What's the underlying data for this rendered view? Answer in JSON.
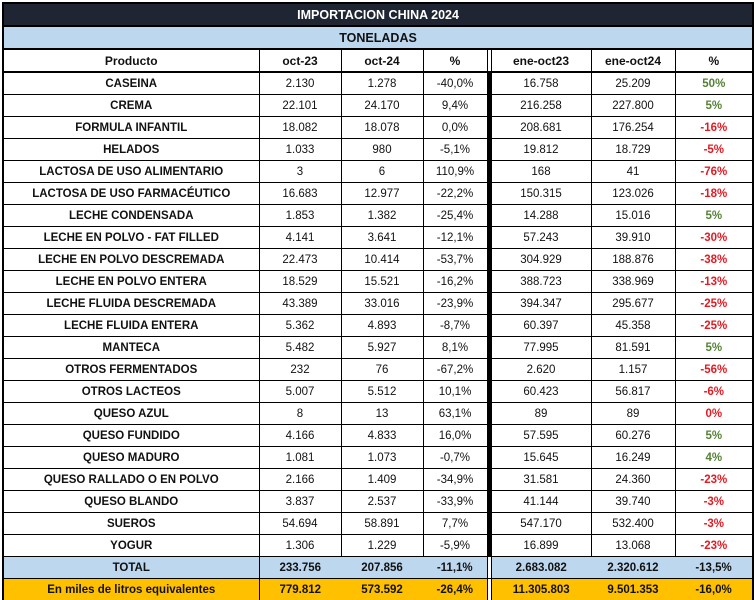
{
  "title": "IMPORTACION CHINA 2024",
  "subtitle": "TONELADAS",
  "columns": [
    "Producto",
    "oct-23",
    "oct-24",
    "%",
    "ene-oct23",
    "ene-oct24",
    "%"
  ],
  "colors": {
    "title_bg": "#1f2533",
    "band_blue": "#bdd7ee",
    "band_orange": "#ffc000",
    "pct_up": "#548235",
    "pct_down": "#e01b24",
    "grid": "#000000"
  },
  "chart_data": {
    "type": "table",
    "title": "IMPORTACION CHINA 2024",
    "unit": "TONELADAS",
    "columns": [
      "Producto",
      "oct-23",
      "oct-24",
      "%",
      "ene-oct23",
      "ene-oct24",
      "%"
    ],
    "rows": [
      {
        "cells": [
          "CASEINA",
          "2.130",
          "1.278",
          "-40,0%",
          "16.758",
          "25.209",
          "50%"
        ],
        "trend": "up"
      },
      {
        "cells": [
          "CREMA",
          "22.101",
          "24.170",
          "9,4%",
          "216.258",
          "227.800",
          "5%"
        ],
        "trend": "up"
      },
      {
        "cells": [
          "FORMULA INFANTIL",
          "18.082",
          "18.078",
          "0,0%",
          "208.681",
          "176.254",
          "-16%"
        ],
        "trend": "down"
      },
      {
        "cells": [
          "HELADOS",
          "1.033",
          "980",
          "-5,1%",
          "19.812",
          "18.729",
          "-5%"
        ],
        "trend": "down"
      },
      {
        "cells": [
          "LACTOSA DE USO ALIMENTARIO",
          "3",
          "6",
          "110,9%",
          "168",
          "41",
          "-76%"
        ],
        "trend": "down"
      },
      {
        "cells": [
          "LACTOSA DE USO FARMACÉUTICO",
          "16.683",
          "12.977",
          "-22,2%",
          "150.315",
          "123.026",
          "-18%"
        ],
        "trend": "down"
      },
      {
        "cells": [
          "LECHE CONDENSADA",
          "1.853",
          "1.382",
          "-25,4%",
          "14.288",
          "15.016",
          "5%"
        ],
        "trend": "up"
      },
      {
        "cells": [
          "LECHE EN POLVO - FAT FILLED",
          "4.141",
          "3.641",
          "-12,1%",
          "57.243",
          "39.910",
          "-30%"
        ],
        "trend": "down"
      },
      {
        "cells": [
          "LECHE EN POLVO DESCREMADA",
          "22.473",
          "10.414",
          "-53,7%",
          "304.929",
          "188.876",
          "-38%"
        ],
        "trend": "down"
      },
      {
        "cells": [
          "LECHE EN POLVO ENTERA",
          "18.529",
          "15.521",
          "-16,2%",
          "388.723",
          "338.969",
          "-13%"
        ],
        "trend": "down"
      },
      {
        "cells": [
          "LECHE FLUIDA DESCREMADA",
          "43.389",
          "33.016",
          "-23,9%",
          "394.347",
          "295.677",
          "-25%"
        ],
        "trend": "down"
      },
      {
        "cells": [
          "LECHE FLUIDA ENTERA",
          "5.362",
          "4.893",
          "-8,7%",
          "60.397",
          "45.358",
          "-25%"
        ],
        "trend": "down"
      },
      {
        "cells": [
          "MANTECA",
          "5.482",
          "5.927",
          "8,1%",
          "77.995",
          "81.591",
          "5%"
        ],
        "trend": "up"
      },
      {
        "cells": [
          "OTROS FERMENTADOS",
          "232",
          "76",
          "-67,2%",
          "2.620",
          "1.157",
          "-56%"
        ],
        "trend": "down"
      },
      {
        "cells": [
          "OTROS LACTEOS",
          "5.007",
          "5.512",
          "10,1%",
          "60.423",
          "56.817",
          "-6%"
        ],
        "trend": "down"
      },
      {
        "cells": [
          "QUESO AZUL",
          "8",
          "13",
          "63,1%",
          "89",
          "89",
          "0%"
        ],
        "trend": "down"
      },
      {
        "cells": [
          "QUESO FUNDIDO",
          "4.166",
          "4.833",
          "16,0%",
          "57.595",
          "60.276",
          "5%"
        ],
        "trend": "up"
      },
      {
        "cells": [
          "QUESO MADURO",
          "1.081",
          "1.073",
          "-0,7%",
          "15.645",
          "16.249",
          "4%"
        ],
        "trend": "up"
      },
      {
        "cells": [
          "QUESO RALLADO O EN POLVO",
          "2.166",
          "1.409",
          "-34,9%",
          "31.581",
          "24.360",
          "-23%"
        ],
        "trend": "down"
      },
      {
        "cells": [
          "QUESO BLANDO",
          "3.837",
          "2.537",
          "-33,9%",
          "41.144",
          "39.740",
          "-3%"
        ],
        "trend": "down"
      },
      {
        "cells": [
          "SUEROS",
          "54.694",
          "58.891",
          "7,7%",
          "547.170",
          "532.400",
          "-3%"
        ],
        "trend": "down"
      },
      {
        "cells": [
          "YOGUR",
          "1.306",
          "1.229",
          "-5,9%",
          "16.899",
          "13.068",
          "-23%"
        ],
        "trend": "down"
      }
    ],
    "total_row": {
      "cells": [
        "TOTAL",
        "233.756",
        "207.856",
        "-11,1%",
        "2.683.082",
        "2.320.612",
        "-13,5%"
      ]
    },
    "equivalents_row": {
      "cells": [
        "En miles de litros equivalentes",
        "779.812",
        "573.592",
        "-26,4%",
        "11.305.803",
        "9.501.353",
        "-16,0%"
      ]
    }
  }
}
